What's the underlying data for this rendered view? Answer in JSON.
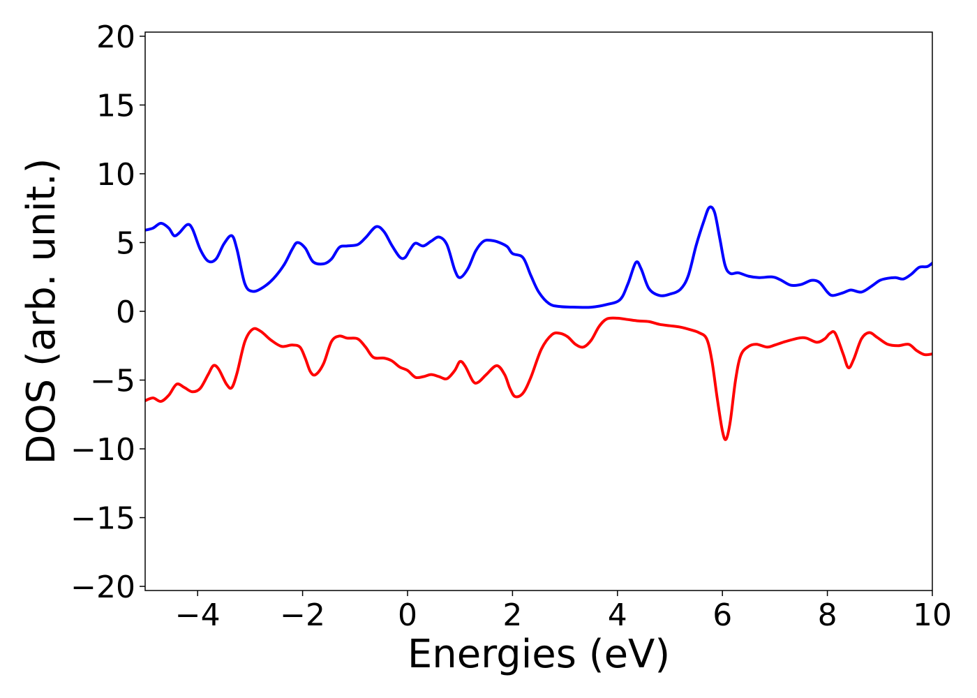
{
  "chart_data": {
    "type": "line",
    "title": "",
    "xlabel": "Energies (eV)",
    "ylabel": "DOS (arb. unit.)",
    "xlim": [
      -5,
      10
    ],
    "ylim": [
      -20.3,
      20.3
    ],
    "xticks": [
      -4,
      -2,
      0,
      2,
      4,
      6,
      8,
      10
    ],
    "yticks": [
      -20,
      -15,
      -10,
      -5,
      0,
      5,
      10,
      15,
      20
    ],
    "xtick_labels": [
      "−4",
      "−2",
      "0",
      "2",
      "4",
      "6",
      "8",
      "10"
    ],
    "ytick_labels": [
      "−20",
      "−15",
      "−10",
      "−5",
      "0",
      "5",
      "10",
      "15",
      "20"
    ],
    "grid": false,
    "series": [
      {
        "color": "#0000ff",
        "points": [
          [
            -5.0,
            5.9
          ],
          [
            -4.85,
            6.05
          ],
          [
            -4.7,
            6.4
          ],
          [
            -4.55,
            6.05
          ],
          [
            -4.45,
            5.5
          ],
          [
            -4.35,
            5.7
          ],
          [
            -4.2,
            6.3
          ],
          [
            -4.1,
            6.0
          ],
          [
            -3.95,
            4.5
          ],
          [
            -3.8,
            3.65
          ],
          [
            -3.65,
            3.8
          ],
          [
            -3.5,
            4.9
          ],
          [
            -3.35,
            5.5
          ],
          [
            -3.25,
            4.5
          ],
          [
            -3.1,
            2.0
          ],
          [
            -2.95,
            1.45
          ],
          [
            -2.75,
            1.75
          ],
          [
            -2.55,
            2.4
          ],
          [
            -2.35,
            3.4
          ],
          [
            -2.2,
            4.5
          ],
          [
            -2.1,
            5.0
          ],
          [
            -1.95,
            4.6
          ],
          [
            -1.8,
            3.6
          ],
          [
            -1.6,
            3.45
          ],
          [
            -1.45,
            3.8
          ],
          [
            -1.3,
            4.65
          ],
          [
            -1.15,
            4.75
          ],
          [
            -0.95,
            4.85
          ],
          [
            -0.8,
            5.35
          ],
          [
            -0.6,
            6.15
          ],
          [
            -0.45,
            5.8
          ],
          [
            -0.3,
            4.8
          ],
          [
            -0.15,
            3.95
          ],
          [
            -0.05,
            3.9
          ],
          [
            0.05,
            4.5
          ],
          [
            0.15,
            4.95
          ],
          [
            0.3,
            4.75
          ],
          [
            0.45,
            5.1
          ],
          [
            0.6,
            5.4
          ],
          [
            0.75,
            4.85
          ],
          [
            0.9,
            3.0
          ],
          [
            1.0,
            2.45
          ],
          [
            1.15,
            3.1
          ],
          [
            1.3,
            4.4
          ],
          [
            1.45,
            5.1
          ],
          [
            1.6,
            5.15
          ],
          [
            1.75,
            5.0
          ],
          [
            1.9,
            4.7
          ],
          [
            2.0,
            4.2
          ],
          [
            2.2,
            3.9
          ],
          [
            2.35,
            2.6
          ],
          [
            2.5,
            1.4
          ],
          [
            2.7,
            0.55
          ],
          [
            2.9,
            0.35
          ],
          [
            3.2,
            0.3
          ],
          [
            3.5,
            0.3
          ],
          [
            3.8,
            0.5
          ],
          [
            4.05,
            0.85
          ],
          [
            4.2,
            2.0
          ],
          [
            4.35,
            3.55
          ],
          [
            4.45,
            3.1
          ],
          [
            4.6,
            1.65
          ],
          [
            4.8,
            1.15
          ],
          [
            5.0,
            1.25
          ],
          [
            5.2,
            1.6
          ],
          [
            5.35,
            2.6
          ],
          [
            5.5,
            4.8
          ],
          [
            5.65,
            6.6
          ],
          [
            5.75,
            7.55
          ],
          [
            5.85,
            7.2
          ],
          [
            5.95,
            5.3
          ],
          [
            6.05,
            3.35
          ],
          [
            6.15,
            2.75
          ],
          [
            6.3,
            2.8
          ],
          [
            6.5,
            2.55
          ],
          [
            6.7,
            2.45
          ],
          [
            6.95,
            2.5
          ],
          [
            7.1,
            2.3
          ],
          [
            7.3,
            1.9
          ],
          [
            7.5,
            1.95
          ],
          [
            7.7,
            2.25
          ],
          [
            7.85,
            2.1
          ],
          [
            8.0,
            1.4
          ],
          [
            8.1,
            1.15
          ],
          [
            8.3,
            1.35
          ],
          [
            8.45,
            1.55
          ],
          [
            8.65,
            1.4
          ],
          [
            8.85,
            1.85
          ],
          [
            9.0,
            2.25
          ],
          [
            9.15,
            2.4
          ],
          [
            9.3,
            2.45
          ],
          [
            9.45,
            2.35
          ],
          [
            9.6,
            2.7
          ],
          [
            9.75,
            3.2
          ],
          [
            9.9,
            3.25
          ],
          [
            10.0,
            3.5
          ]
        ]
      },
      {
        "color": "#ff0000",
        "points": [
          [
            -5.0,
            -6.5
          ],
          [
            -4.85,
            -6.3
          ],
          [
            -4.7,
            -6.55
          ],
          [
            -4.55,
            -6.1
          ],
          [
            -4.4,
            -5.3
          ],
          [
            -4.25,
            -5.55
          ],
          [
            -4.1,
            -5.85
          ],
          [
            -3.95,
            -5.6
          ],
          [
            -3.8,
            -4.6
          ],
          [
            -3.7,
            -3.95
          ],
          [
            -3.6,
            -4.2
          ],
          [
            -3.45,
            -5.3
          ],
          [
            -3.35,
            -5.55
          ],
          [
            -3.25,
            -4.5
          ],
          [
            -3.1,
            -2.2
          ],
          [
            -2.95,
            -1.3
          ],
          [
            -2.8,
            -1.45
          ],
          [
            -2.6,
            -2.1
          ],
          [
            -2.4,
            -2.55
          ],
          [
            -2.2,
            -2.45
          ],
          [
            -2.05,
            -2.6
          ],
          [
            -1.95,
            -3.4
          ],
          [
            -1.85,
            -4.4
          ],
          [
            -1.75,
            -4.6
          ],
          [
            -1.6,
            -3.8
          ],
          [
            -1.45,
            -2.2
          ],
          [
            -1.3,
            -1.8
          ],
          [
            -1.15,
            -1.95
          ],
          [
            -0.95,
            -2.0
          ],
          [
            -0.8,
            -2.6
          ],
          [
            -0.65,
            -3.35
          ],
          [
            -0.45,
            -3.4
          ],
          [
            -0.3,
            -3.6
          ],
          [
            -0.15,
            -4.05
          ],
          [
            0.0,
            -4.3
          ],
          [
            0.15,
            -4.8
          ],
          [
            0.3,
            -4.75
          ],
          [
            0.45,
            -4.6
          ],
          [
            0.6,
            -4.75
          ],
          [
            0.75,
            -4.9
          ],
          [
            0.9,
            -4.3
          ],
          [
            1.0,
            -3.65
          ],
          [
            1.1,
            -4.0
          ],
          [
            1.25,
            -5.1
          ],
          [
            1.35,
            -5.15
          ],
          [
            1.5,
            -4.6
          ],
          [
            1.7,
            -3.95
          ],
          [
            1.85,
            -4.6
          ],
          [
            1.95,
            -5.6
          ],
          [
            2.05,
            -6.2
          ],
          [
            2.2,
            -5.95
          ],
          [
            2.35,
            -4.8
          ],
          [
            2.55,
            -2.75
          ],
          [
            2.75,
            -1.7
          ],
          [
            2.9,
            -1.6
          ],
          [
            3.05,
            -1.85
          ],
          [
            3.2,
            -2.4
          ],
          [
            3.35,
            -2.6
          ],
          [
            3.5,
            -2.1
          ],
          [
            3.65,
            -1.1
          ],
          [
            3.8,
            -0.55
          ],
          [
            4.0,
            -0.5
          ],
          [
            4.2,
            -0.6
          ],
          [
            4.4,
            -0.7
          ],
          [
            4.6,
            -0.75
          ],
          [
            4.8,
            -0.95
          ],
          [
            5.0,
            -1.05
          ],
          [
            5.2,
            -1.15
          ],
          [
            5.4,
            -1.35
          ],
          [
            5.55,
            -1.55
          ],
          [
            5.7,
            -2.0
          ],
          [
            5.8,
            -3.6
          ],
          [
            5.9,
            -6.3
          ],
          [
            6.0,
            -8.7
          ],
          [
            6.07,
            -9.3
          ],
          [
            6.15,
            -8.0
          ],
          [
            6.25,
            -5.0
          ],
          [
            6.35,
            -3.2
          ],
          [
            6.5,
            -2.55
          ],
          [
            6.65,
            -2.4
          ],
          [
            6.85,
            -2.6
          ],
          [
            7.0,
            -2.45
          ],
          [
            7.2,
            -2.2
          ],
          [
            7.45,
            -1.95
          ],
          [
            7.6,
            -1.95
          ],
          [
            7.8,
            -2.25
          ],
          [
            7.95,
            -2.0
          ],
          [
            8.05,
            -1.6
          ],
          [
            8.15,
            -1.6
          ],
          [
            8.3,
            -3.1
          ],
          [
            8.4,
            -4.1
          ],
          [
            8.5,
            -3.5
          ],
          [
            8.65,
            -2.0
          ],
          [
            8.8,
            -1.55
          ],
          [
            8.95,
            -1.9
          ],
          [
            9.15,
            -2.4
          ],
          [
            9.35,
            -2.5
          ],
          [
            9.55,
            -2.4
          ],
          [
            9.7,
            -2.85
          ],
          [
            9.85,
            -3.15
          ],
          [
            10.0,
            -3.1
          ]
        ]
      }
    ]
  }
}
